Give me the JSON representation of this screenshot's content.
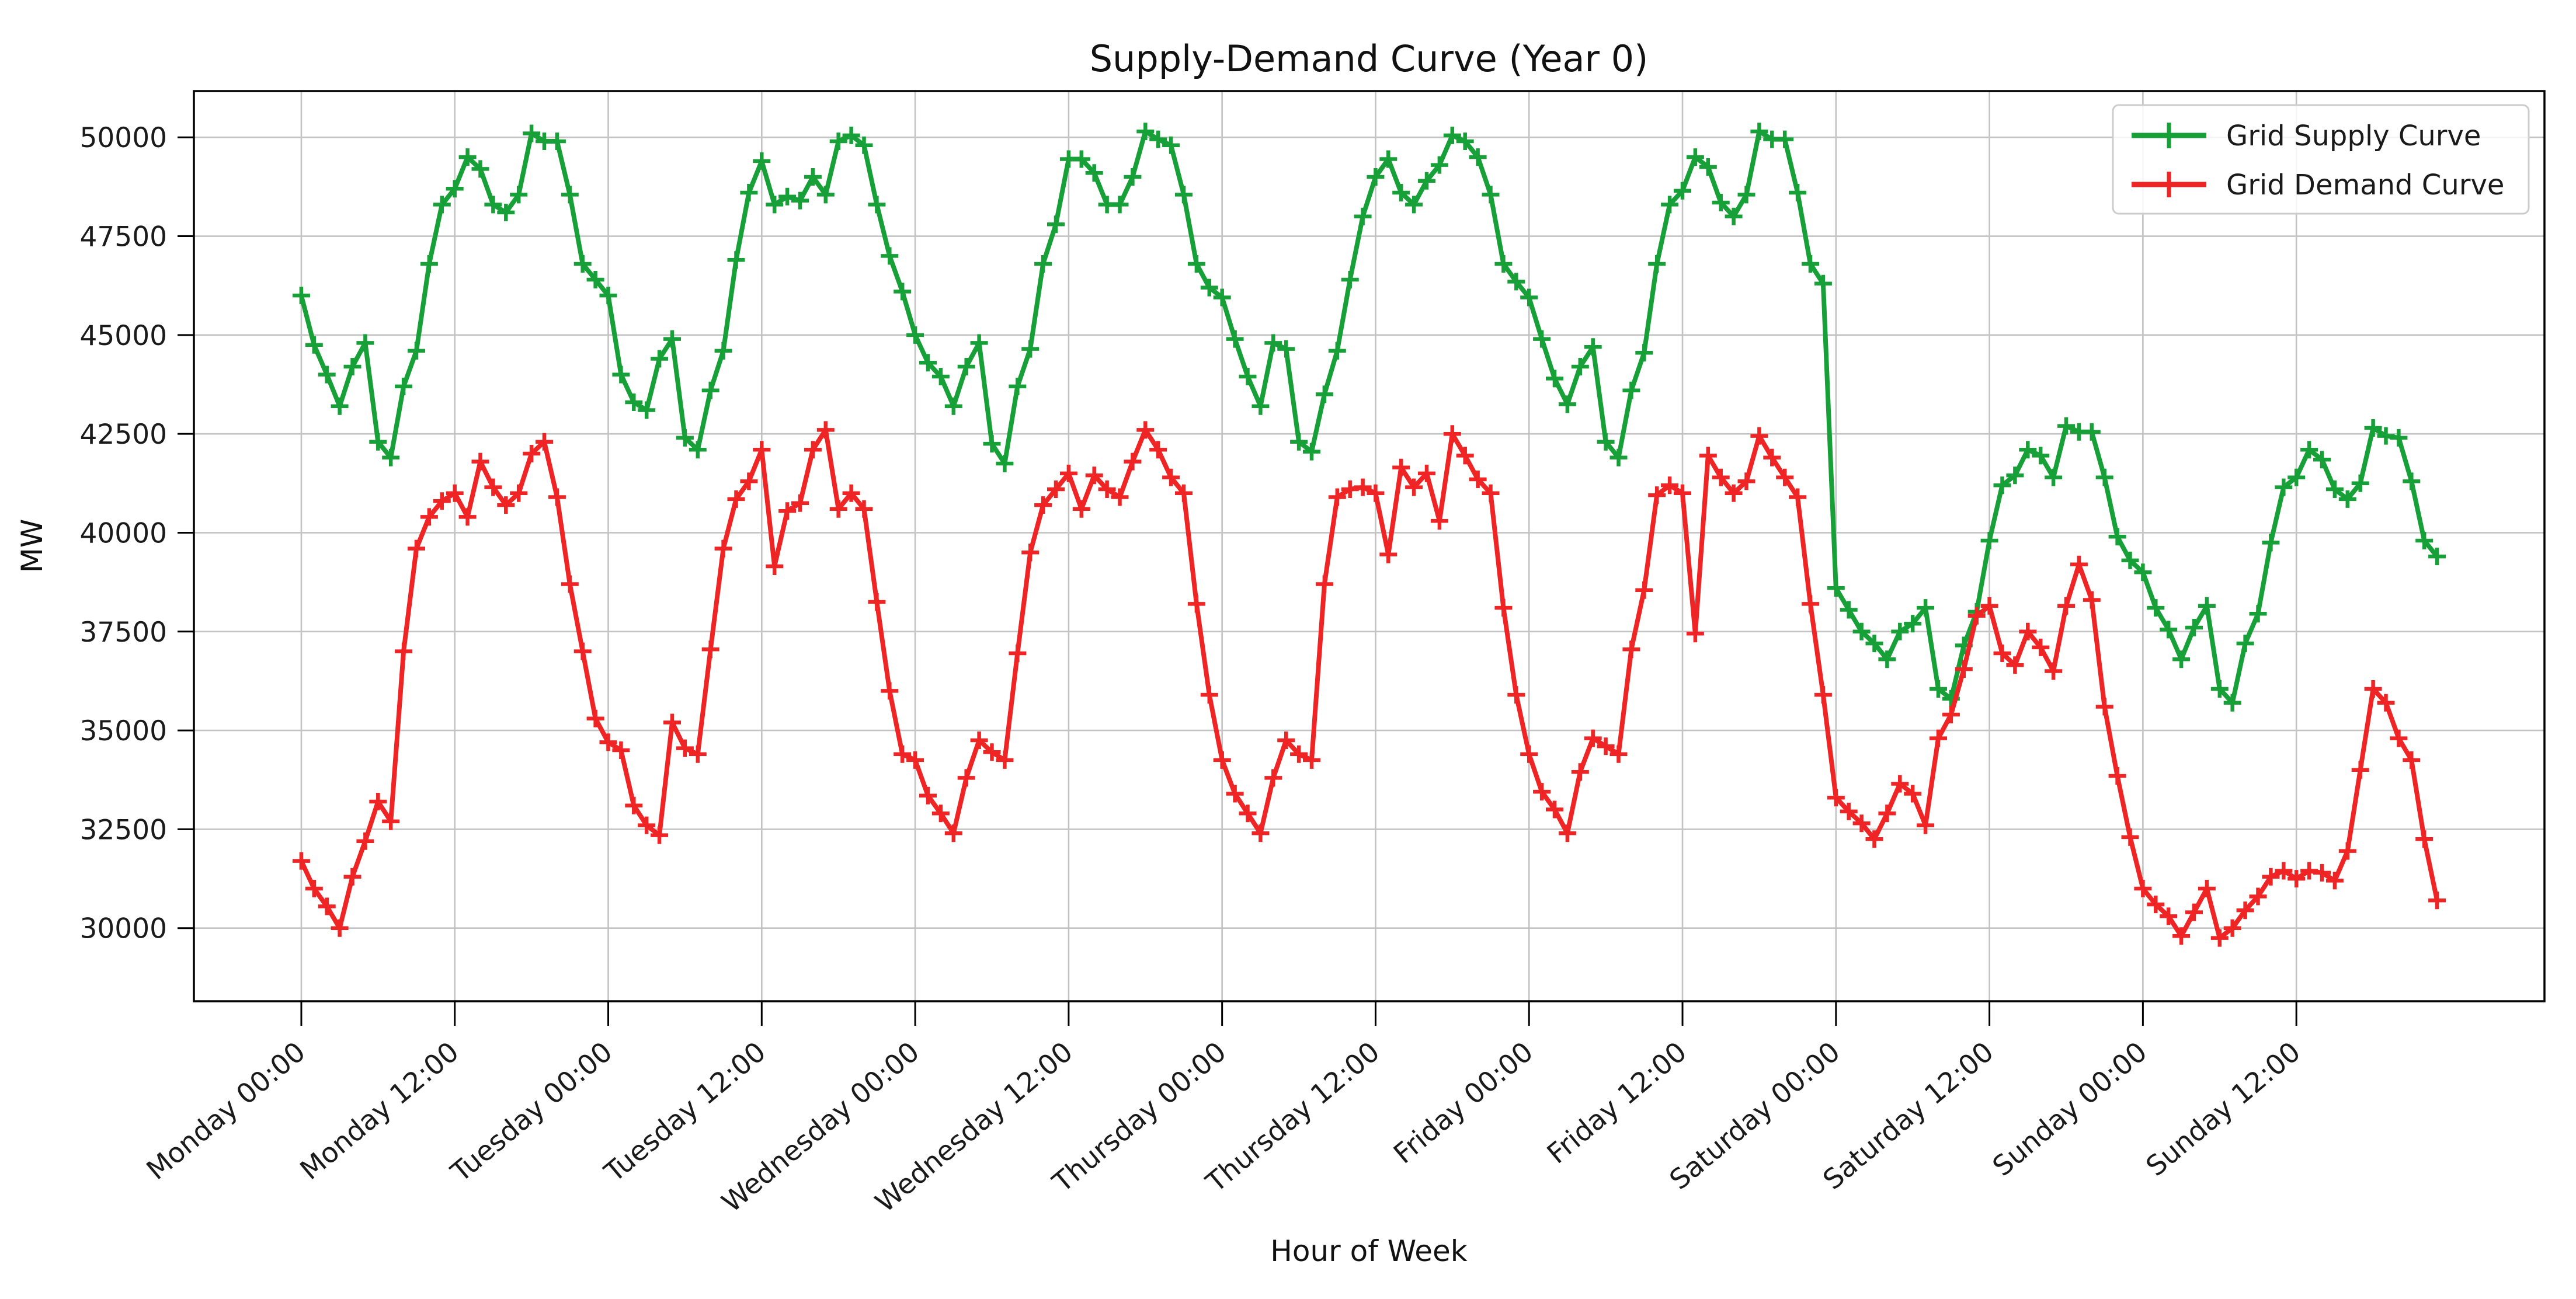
{
  "figure": {
    "title": "Supply-Demand Curve (Year 0)"
  },
  "chart_data": {
    "type": "line",
    "title": "Supply-Demand Curve (Year 0)",
    "xlabel": "Hour of Week",
    "ylabel": "MW",
    "grid": true,
    "grid_color": "#c3c3c3",
    "spine_color": "#000000",
    "tick_label_color": "#1a1a1a",
    "legend": {
      "position": "upper right",
      "border_color": "#cccccc",
      "background": "#ffffff"
    },
    "x_tick_hours": [
      0,
      12,
      24,
      36,
      48,
      60,
      72,
      84,
      96,
      108,
      120,
      132,
      144,
      156
    ],
    "x_tick_labels": [
      "Monday 00:00",
      "Monday 12:00",
      "Tuesday 00:00",
      "Tuesday 12:00",
      "Wednesday 00:00",
      "Wednesday 12:00",
      "Thursday 00:00",
      "Thursday 12:00",
      "Friday 00:00",
      "Friday 12:00",
      "Saturday 00:00",
      "Saturday 12:00",
      "Sunday 00:00",
      "Sunday 12:00"
    ],
    "y_ticks": [
      30000,
      32500,
      35000,
      37500,
      40000,
      42500,
      45000,
      47500,
      50000
    ],
    "xlim": [
      -8.4,
      175.4
    ],
    "ylim": [
      28150,
      51170
    ],
    "x_hours": "0..167 hourly",
    "series": [
      {
        "name": "Grid Supply Curve",
        "color": "#18a038",
        "marker": "+",
        "values": [
          46000,
          44750,
          44000,
          43200,
          44200,
          44800,
          42300,
          41900,
          43700,
          44600,
          46800,
          48300,
          48700,
          49500,
          49200,
          48300,
          48100,
          48550,
          50100,
          49900,
          49900,
          48550,
          46800,
          46400,
          46000,
          44000,
          43300,
          43100,
          44400,
          44900,
          42400,
          42100,
          43600,
          44600,
          46900,
          48600,
          49400,
          48300,
          48500,
          48400,
          49000,
          48550,
          49900,
          50050,
          49800,
          48300,
          47000,
          46100,
          45000,
          44300,
          43950,
          43200,
          44200,
          44800,
          42250,
          41750,
          43700,
          44650,
          46800,
          47800,
          49450,
          49450,
          49100,
          48300,
          48300,
          49000,
          50150,
          49950,
          49800,
          48550,
          46800,
          46200,
          45950,
          44900,
          43950,
          43200,
          44800,
          44650,
          42300,
          42050,
          43500,
          44600,
          46400,
          48000,
          49000,
          49450,
          48600,
          48300,
          48900,
          49300,
          50050,
          49900,
          49500,
          48550,
          46800,
          46350,
          45950,
          44900,
          43900,
          43250,
          44200,
          44700,
          42300,
          41900,
          43600,
          44550,
          46800,
          48300,
          48650,
          49500,
          49250,
          48350,
          48000,
          48550,
          50150,
          49950,
          49950,
          48600,
          46800,
          46300,
          38600,
          38050,
          37500,
          37200,
          36800,
          37500,
          37700,
          38100,
          36050,
          35800,
          37150,
          38000,
          39800,
          41200,
          41450,
          42100,
          41950,
          41400,
          42700,
          42550,
          42550,
          41400,
          39900,
          39300,
          39000,
          38100,
          37550,
          36800,
          37600,
          38150,
          36050,
          35700,
          37200,
          37950,
          39750,
          41150,
          41400,
          42100,
          41850,
          41100,
          40850,
          41250,
          42650,
          42450,
          42400,
          41300,
          39800,
          39400
        ]
      },
      {
        "name": "Grid Demand Curve",
        "color": "#ef2424",
        "marker": "+",
        "values": [
          31700,
          31000,
          30550,
          30000,
          31300,
          32200,
          33200,
          32700,
          37000,
          39600,
          40400,
          40800,
          41000,
          40400,
          41800,
          41150,
          40700,
          41000,
          42000,
          42300,
          40900,
          38700,
          37000,
          35300,
          34700,
          34500,
          33100,
          32600,
          32350,
          35200,
          34550,
          34400,
          37050,
          39600,
          40850,
          41300,
          42100,
          39150,
          40550,
          40750,
          42100,
          42600,
          40600,
          41000,
          40600,
          38250,
          36000,
          34400,
          34250,
          33350,
          32900,
          32400,
          33800,
          34750,
          34450,
          34250,
          36950,
          39500,
          40700,
          41100,
          41500,
          40600,
          41450,
          41100,
          40900,
          41800,
          42600,
          42100,
          41400,
          41000,
          38200,
          35900,
          34250,
          33400,
          32900,
          32400,
          33800,
          34750,
          34400,
          34250,
          38700,
          40900,
          41100,
          41150,
          41000,
          39450,
          41650,
          41150,
          41500,
          40300,
          42500,
          41950,
          41350,
          41000,
          38100,
          35900,
          34400,
          33450,
          33000,
          32400,
          33950,
          34800,
          34600,
          34400,
          37050,
          38550,
          40950,
          41200,
          41000,
          37450,
          41950,
          41400,
          41000,
          41300,
          42450,
          41900,
          41400,
          40900,
          38200,
          35900,
          33300,
          32950,
          32650,
          32250,
          32900,
          33650,
          33400,
          32600,
          34800,
          35400,
          36550,
          37900,
          38150,
          36950,
          36650,
          37500,
          37100,
          36500,
          38150,
          39200,
          38300,
          35600,
          33850,
          32300,
          31000,
          30600,
          30300,
          29800,
          30400,
          31000,
          29750,
          30000,
          30450,
          30800,
          31300,
          31450,
          31250,
          31450,
          31400,
          31200,
          31950,
          34000,
          36050,
          35700,
          34800,
          34250,
          32250,
          30700
        ]
      }
    ]
  }
}
